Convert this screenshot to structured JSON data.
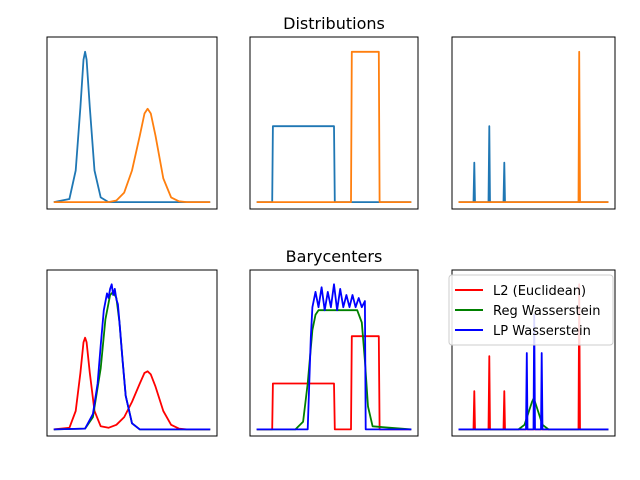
{
  "figure": {
    "row_titles": [
      "Distributions",
      "Barycenters"
    ]
  },
  "colors": {
    "dist_a": "#1f77b4",
    "dist_b": "#ff7f0e",
    "l2": "#ff0000",
    "reg": "#008000",
    "lp": "#0000ff"
  },
  "legend": {
    "items": [
      {
        "label": "L2 (Euclidean)",
        "color": "#ff0000"
      },
      {
        "label": "Reg Wasserstein",
        "color": "#008000"
      },
      {
        "label": "LP Wasserstein",
        "color": "#0000ff"
      }
    ]
  },
  "chart_data": [
    {
      "type": "line",
      "panel": "distributions-1",
      "title": "Distributions",
      "xlim": [
        0,
        100
      ],
      "ylim": [
        0,
        1
      ],
      "series": [
        {
          "color": "#1f77b4",
          "x": [
            0,
            10,
            14,
            17,
            19,
            20,
            21,
            23,
            26,
            30,
            35,
            40,
            100
          ],
          "y": [
            0,
            0.02,
            0.2,
            0.6,
            0.9,
            0.95,
            0.9,
            0.6,
            0.2,
            0.03,
            0,
            0,
            0
          ]
        },
        {
          "color": "#ff7f0e",
          "x": [
            0,
            35,
            40,
            45,
            50,
            55,
            58,
            60,
            62,
            65,
            70,
            75,
            80,
            85,
            100
          ],
          "y": [
            0,
            0,
            0.01,
            0.06,
            0.2,
            0.42,
            0.56,
            0.59,
            0.56,
            0.42,
            0.15,
            0.03,
            0.005,
            0,
            0
          ]
        }
      ]
    },
    {
      "type": "line",
      "panel": "distributions-2",
      "xlim": [
        0,
        100
      ],
      "ylim": [
        0,
        1
      ],
      "series": [
        {
          "color": "#1f77b4",
          "x": [
            0,
            10,
            10.5,
            50,
            50.5,
            100
          ],
          "y": [
            0,
            0,
            0.48,
            0.48,
            0,
            0
          ]
        },
        {
          "color": "#ff7f0e",
          "x": [
            0,
            61,
            61.5,
            79,
            79.5,
            100
          ],
          "y": [
            0,
            0,
            0.95,
            0.95,
            0,
            0
          ]
        }
      ]
    },
    {
      "type": "line",
      "panel": "distributions-3",
      "xlim": [
        0,
        100
      ],
      "ylim": [
        0,
        1
      ],
      "series": [
        {
          "color": "#1f77b4",
          "x": [
            0,
            10,
            10.5,
            11,
            20,
            20.5,
            21,
            30,
            30.5,
            31,
            100
          ],
          "y": [
            0,
            0,
            0.25,
            0,
            0,
            0.48,
            0,
            0,
            0.25,
            0,
            0
          ]
        },
        {
          "color": "#ff7f0e",
          "x": [
            0,
            80,
            80.5,
            81,
            100
          ],
          "y": [
            0,
            0,
            0.95,
            0,
            0
          ]
        }
      ]
    },
    {
      "type": "line",
      "panel": "barycenters-1",
      "title": "Barycenters",
      "xlim": [
        0,
        100
      ],
      "ylim": [
        0,
        1
      ],
      "series": [
        {
          "name": "L2 (Euclidean)",
          "color": "#ff0000",
          "x": [
            0,
            10,
            14,
            17,
            19,
            20,
            21,
            23,
            26,
            30,
            35,
            40,
            45,
            50,
            55,
            58,
            60,
            62,
            65,
            70,
            75,
            80,
            85,
            100
          ],
          "y": [
            0,
            0.01,
            0.12,
            0.37,
            0.57,
            0.6,
            0.57,
            0.37,
            0.12,
            0.02,
            0.01,
            0.03,
            0.08,
            0.18,
            0.3,
            0.37,
            0.38,
            0.36,
            0.28,
            0.12,
            0.03,
            0.005,
            0,
            0
          ]
        },
        {
          "name": "Reg Wasserstein",
          "color": "#008000",
          "x": [
            0,
            20,
            25,
            30,
            33,
            36,
            38,
            40,
            42,
            44,
            46,
            50,
            55,
            60,
            100
          ],
          "y": [
            0,
            0.005,
            0.08,
            0.4,
            0.72,
            0.88,
            0.9,
            0.86,
            0.7,
            0.45,
            0.22,
            0.04,
            0,
            0,
            0
          ]
        },
        {
          "name": "LP Wasserstein",
          "color": "#0000ff",
          "x": [
            0,
            20,
            25,
            28,
            30,
            32,
            34,
            35,
            36,
            37,
            38,
            39,
            40,
            41,
            42,
            44,
            46,
            50,
            55,
            100
          ],
          "y": [
            0,
            0.005,
            0.1,
            0.3,
            0.55,
            0.78,
            0.89,
            0.86,
            0.92,
            0.95,
            0.88,
            0.92,
            0.85,
            0.82,
            0.7,
            0.45,
            0.22,
            0.04,
            0,
            0
          ]
        }
      ]
    },
    {
      "type": "line",
      "panel": "barycenters-2",
      "xlim": [
        0,
        100
      ],
      "ylim": [
        0,
        1
      ],
      "series": [
        {
          "name": "L2 (Euclidean)",
          "color": "#ff0000",
          "x": [
            0,
            10,
            10.5,
            50,
            50.5,
            61,
            61.5,
            79,
            79.5,
            100
          ],
          "y": [
            0,
            0,
            0.3,
            0.3,
            0,
            0,
            0.61,
            0.61,
            0,
            0
          ]
        },
        {
          "name": "Reg Wasserstein",
          "color": "#008000",
          "x": [
            0,
            25,
            30,
            33,
            36,
            38,
            40,
            42,
            60,
            65,
            68,
            70,
            72,
            75,
            100
          ],
          "y": [
            0,
            0,
            0.05,
            0.3,
            0.65,
            0.75,
            0.78,
            0.78,
            0.78,
            0.78,
            0.7,
            0.45,
            0.15,
            0.02,
            0
          ]
        },
        {
          "name": "LP Wasserstein",
          "color": "#0000ff",
          "x": [
            0,
            33,
            35,
            36,
            38,
            40,
            42,
            44,
            46,
            48,
            50,
            52,
            54,
            56,
            58,
            60,
            62,
            64,
            66,
            68,
            70,
            70.5,
            100
          ],
          "y": [
            0,
            0,
            0.6,
            0.8,
            0.9,
            0.8,
            0.93,
            0.78,
            0.9,
            0.8,
            0.95,
            0.78,
            0.92,
            0.8,
            0.88,
            0.8,
            0.88,
            0.8,
            0.86,
            0.8,
            0.84,
            0,
            0
          ]
        }
      ]
    },
    {
      "type": "line",
      "panel": "barycenters-3",
      "xlim": [
        0,
        100
      ],
      "ylim": [
        0,
        1
      ],
      "series": [
        {
          "name": "L2 (Euclidean)",
          "color": "#ff0000",
          "x": [
            0,
            10,
            10.5,
            11,
            20,
            20.5,
            21,
            30,
            30.5,
            31,
            80,
            80.5,
            81,
            100
          ],
          "y": [
            0,
            0,
            0.25,
            0,
            0,
            0.48,
            0,
            0,
            0.25,
            0,
            0,
            0.95,
            0,
            0
          ]
        },
        {
          "name": "Reg Wasserstein",
          "color": "#008000",
          "x": [
            0,
            40,
            44,
            47,
            49,
            50,
            51,
            53,
            56,
            60,
            100
          ],
          "y": [
            0,
            0,
            0.03,
            0.12,
            0.18,
            0.2,
            0.18,
            0.12,
            0.03,
            0,
            0
          ]
        },
        {
          "name": "LP Wasserstein",
          "color": "#0000ff",
          "x": [
            0,
            45,
            45.5,
            46,
            50,
            50.5,
            51,
            55,
            55.5,
            56,
            100
          ],
          "y": [
            0,
            0,
            0.5,
            0,
            0,
            0.75,
            0,
            0,
            0.5,
            0,
            0
          ]
        }
      ]
    }
  ]
}
